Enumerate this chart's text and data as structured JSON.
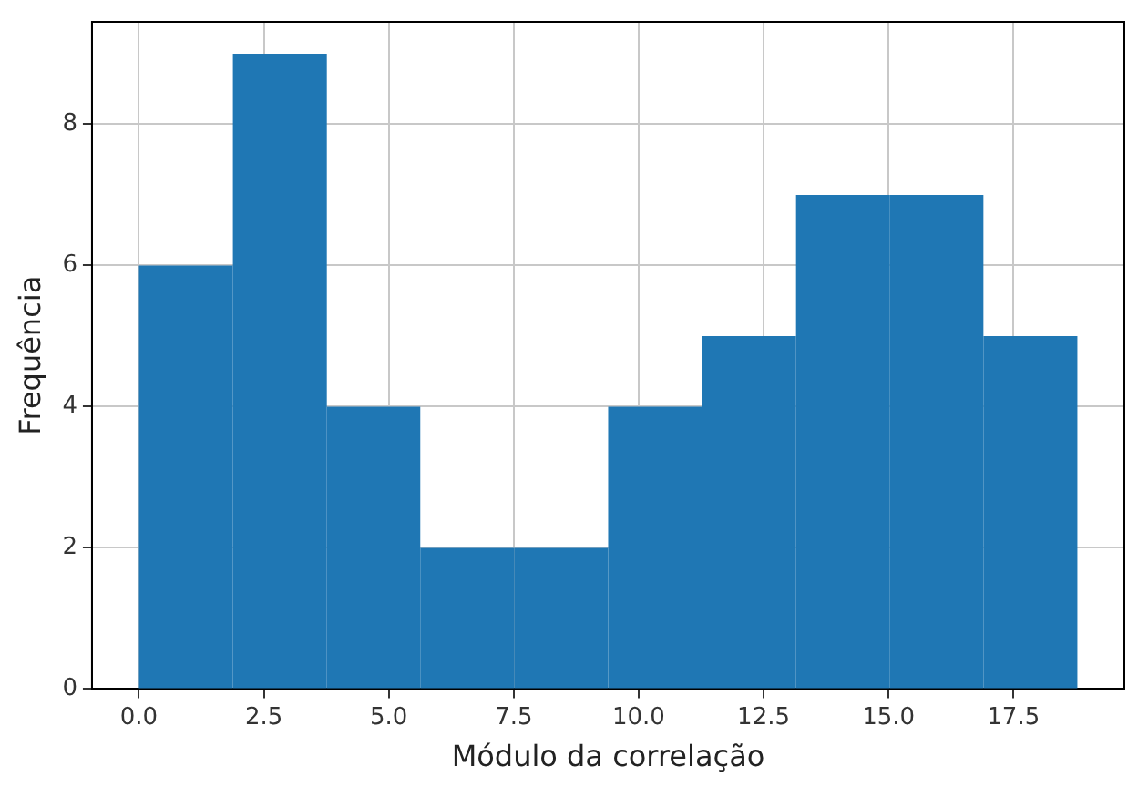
{
  "chart_data": {
    "type": "histogram",
    "xlabel": "Módulo da correlação",
    "ylabel": "Frequência",
    "bins": [
      0,
      1.88,
      3.76,
      5.63,
      7.51,
      9.39,
      11.27,
      13.15,
      15.02,
      16.9,
      18.78
    ],
    "values": [
      6,
      9,
      4,
      2,
      2,
      4,
      5,
      7,
      7,
      5
    ],
    "color": "#1f77b4",
    "xlim": [
      -0.94,
      19.72
    ],
    "ylim": [
      0,
      9.45
    ],
    "xticks": [
      {
        "value": 0,
        "label": "0.0"
      },
      {
        "value": 2.5,
        "label": "2.5"
      },
      {
        "value": 5,
        "label": "5.0"
      },
      {
        "value": 7.5,
        "label": "7.5"
      },
      {
        "value": 10,
        "label": "10.0"
      },
      {
        "value": 12.5,
        "label": "12.5"
      },
      {
        "value": 15,
        "label": "15.0"
      },
      {
        "value": 17.5,
        "label": "17.5"
      }
    ],
    "yticks": [
      0,
      2,
      4,
      6,
      8
    ],
    "grid": true
  }
}
